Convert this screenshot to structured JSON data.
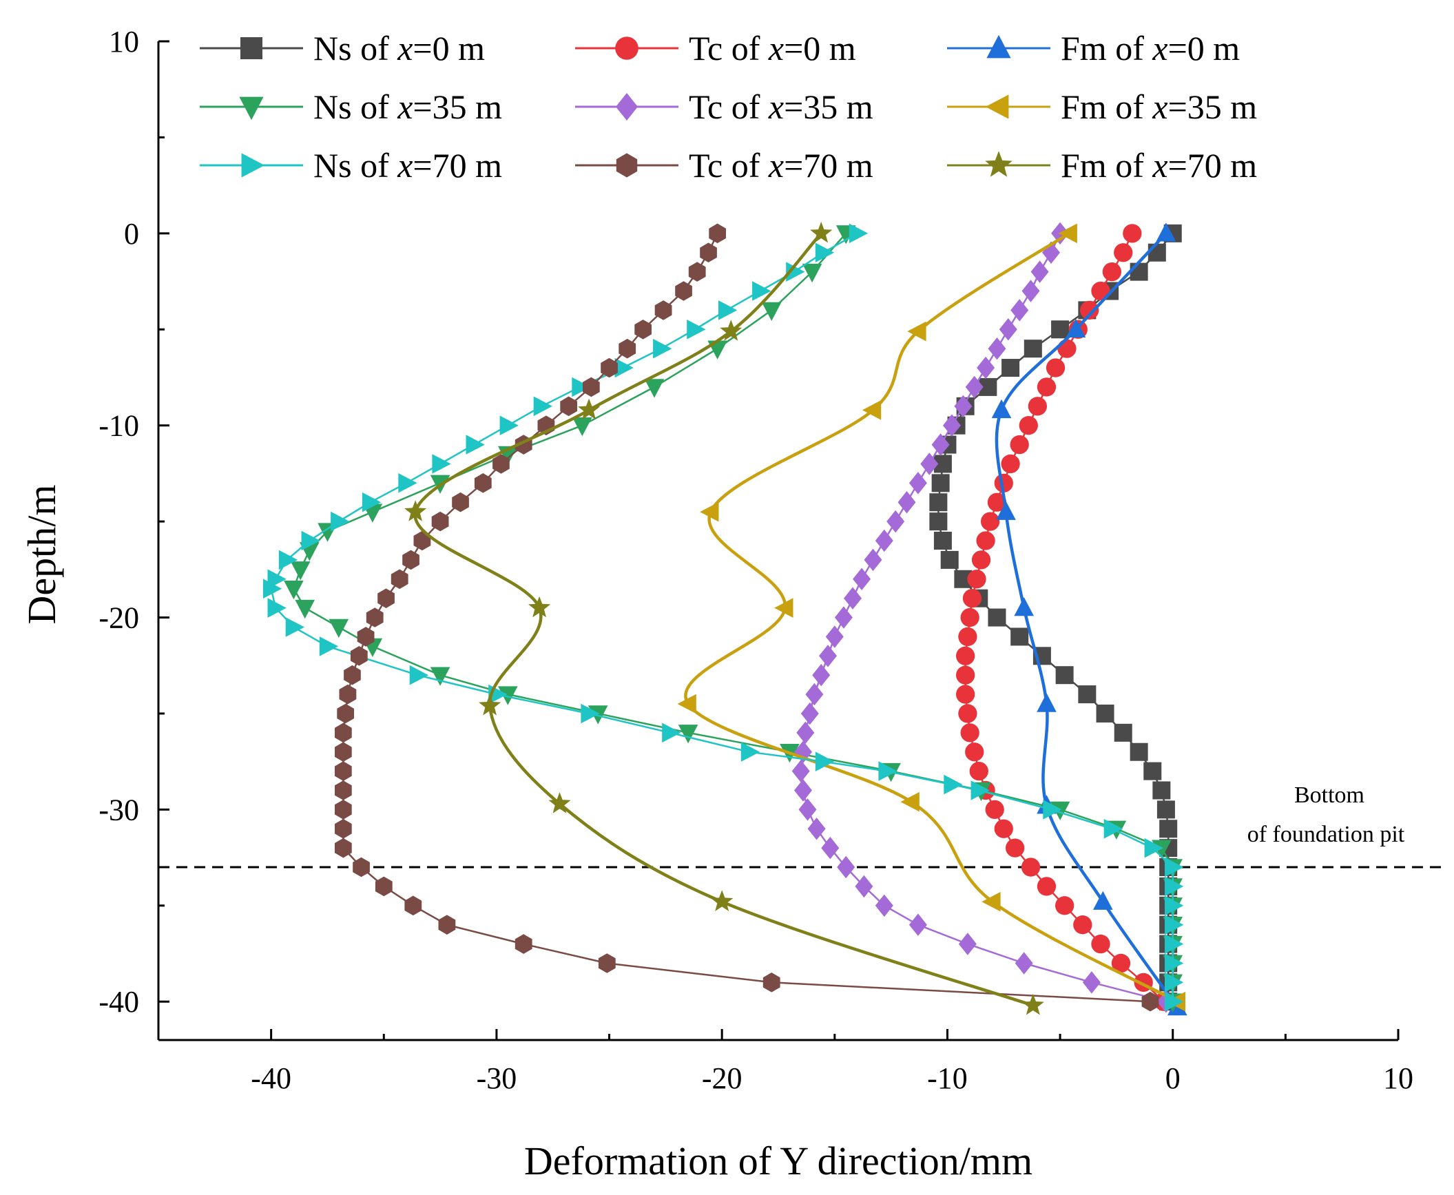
{
  "chart_data": {
    "type": "line",
    "title": "",
    "xlabel": "Deformation of Y direction/mm",
    "ylabel": "Depth/m",
    "xlim": [
      -45,
      10
    ],
    "ylim": [
      -42,
      10
    ],
    "x_ticks": [
      -40,
      -30,
      -20,
      -10,
      0,
      10
    ],
    "y_ticks": [
      -40,
      -30,
      -20,
      -10,
      0,
      10
    ],
    "reference_line": {
      "depth": -33,
      "style": "dashed",
      "label_line1": "Bottom",
      "label_line2": "of foundation pit"
    },
    "series": [
      {
        "name": "Ns of x=0 m",
        "prefix": "Ns of ",
        "var": "x",
        "suffix": "=0 m",
        "color": "#4a4a4a",
        "marker": "square",
        "smooth": false,
        "points": [
          [
            0,
            0
          ],
          [
            -0.7,
            -1
          ],
          [
            -1.5,
            -2
          ],
          [
            -2.8,
            -3
          ],
          [
            -3.8,
            -4
          ],
          [
            -5,
            -5
          ],
          [
            -6.2,
            -6
          ],
          [
            -7.2,
            -7
          ],
          [
            -8.2,
            -8
          ],
          [
            -9.2,
            -9
          ],
          [
            -9.6,
            -10
          ],
          [
            -10,
            -11
          ],
          [
            -10.2,
            -12
          ],
          [
            -10.3,
            -13
          ],
          [
            -10.4,
            -14
          ],
          [
            -10.4,
            -15
          ],
          [
            -10.2,
            -16
          ],
          [
            -9.9,
            -17
          ],
          [
            -9.3,
            -18
          ],
          [
            -8.6,
            -19
          ],
          [
            -7.8,
            -20
          ],
          [
            -6.8,
            -21
          ],
          [
            -5.8,
            -22
          ],
          [
            -4.8,
            -23
          ],
          [
            -3.8,
            -24
          ],
          [
            -3,
            -25
          ],
          [
            -2.2,
            -26
          ],
          [
            -1.5,
            -27
          ],
          [
            -0.9,
            -28
          ],
          [
            -0.5,
            -29
          ],
          [
            -0.3,
            -30
          ],
          [
            -0.2,
            -31
          ],
          [
            -0.2,
            -32
          ],
          [
            -0.2,
            -33
          ],
          [
            -0.2,
            -34
          ],
          [
            -0.2,
            -35
          ],
          [
            -0.2,
            -36
          ],
          [
            -0.2,
            -37
          ],
          [
            -0.2,
            -38
          ],
          [
            -0.2,
            -39
          ],
          [
            -0.2,
            -40
          ]
        ]
      },
      {
        "name": "Tc of x=0 m",
        "prefix": "Tc of ",
        "var": "x",
        "suffix": "=0 m",
        "color": "#e8333a",
        "marker": "circle",
        "smooth": false,
        "points": [
          [
            -1.8,
            0
          ],
          [
            -2.2,
            -1
          ],
          [
            -2.7,
            -2
          ],
          [
            -3.2,
            -3
          ],
          [
            -3.7,
            -4
          ],
          [
            -4.2,
            -5
          ],
          [
            -4.7,
            -6
          ],
          [
            -5.2,
            -7
          ],
          [
            -5.6,
            -8
          ],
          [
            -6,
            -9
          ],
          [
            -6.4,
            -10
          ],
          [
            -6.8,
            -11
          ],
          [
            -7.2,
            -12
          ],
          [
            -7.5,
            -13
          ],
          [
            -7.8,
            -14
          ],
          [
            -8.1,
            -15
          ],
          [
            -8.3,
            -16
          ],
          [
            -8.5,
            -17
          ],
          [
            -8.7,
            -18
          ],
          [
            -8.9,
            -19
          ],
          [
            -9,
            -20
          ],
          [
            -9.1,
            -21
          ],
          [
            -9.2,
            -22
          ],
          [
            -9.2,
            -23
          ],
          [
            -9.2,
            -24
          ],
          [
            -9.1,
            -25
          ],
          [
            -9,
            -26
          ],
          [
            -8.8,
            -27
          ],
          [
            -8.6,
            -28
          ],
          [
            -8.3,
            -29
          ],
          [
            -7.9,
            -30
          ],
          [
            -7.5,
            -31
          ],
          [
            -7,
            -32
          ],
          [
            -6.3,
            -33
          ],
          [
            -5.6,
            -34
          ],
          [
            -4.8,
            -35
          ],
          [
            -4,
            -36
          ],
          [
            -3.2,
            -37
          ],
          [
            -2.3,
            -38
          ],
          [
            -1.3,
            -39
          ],
          [
            -0.4,
            -40
          ]
        ]
      },
      {
        "name": "Fm of x=0 m",
        "prefix": "Fm of ",
        "var": "x",
        "suffix": "=0 m",
        "color": "#1f6fdb",
        "marker": "triangle-up",
        "smooth": true,
        "points": [
          [
            -0.3,
            0
          ],
          [
            -4.3,
            -5
          ],
          [
            -7.6,
            -9.2
          ],
          [
            -7.4,
            -14.5
          ],
          [
            -6.6,
            -19.5
          ],
          [
            -5.6,
            -24.5
          ],
          [
            -5.6,
            -29.8
          ],
          [
            -3.1,
            -34.8
          ],
          [
            0.2,
            -40.3
          ]
        ]
      },
      {
        "name": "Ns of x=35 m",
        "prefix": "Ns of ",
        "var": "x",
        "suffix": "=35 m",
        "color": "#2ca35c",
        "marker": "triangle-down",
        "smooth": false,
        "points": [
          [
            -14.5,
            0
          ],
          [
            -16,
            -2
          ],
          [
            -17.8,
            -4
          ],
          [
            -20.2,
            -6
          ],
          [
            -23,
            -8
          ],
          [
            -26.2,
            -10
          ],
          [
            -29.5,
            -11.5
          ],
          [
            -32.5,
            -13
          ],
          [
            -35.5,
            -14.5
          ],
          [
            -37.5,
            -15.5
          ],
          [
            -38.3,
            -16.5
          ],
          [
            -38.7,
            -17.5
          ],
          [
            -39,
            -18.5
          ],
          [
            -38.5,
            -19.5
          ],
          [
            -37,
            -20.5
          ],
          [
            -35.5,
            -21.5
          ],
          [
            -32.5,
            -23
          ],
          [
            -29.5,
            -24
          ],
          [
            -25.5,
            -25
          ],
          [
            -21.5,
            -26
          ],
          [
            -17,
            -27
          ],
          [
            -12.5,
            -28
          ],
          [
            -8.5,
            -29
          ],
          [
            -5,
            -30
          ],
          [
            -2.5,
            -31
          ],
          [
            -0.5,
            -32
          ],
          [
            0,
            -33
          ],
          [
            0,
            -34
          ],
          [
            0,
            -35
          ],
          [
            0,
            -36
          ],
          [
            0,
            -37
          ],
          [
            0,
            -38
          ],
          [
            0,
            -39
          ],
          [
            0,
            -40
          ]
        ]
      },
      {
        "name": "Tc of x=35 m",
        "prefix": "Tc of ",
        "var": "x",
        "suffix": "=35 m",
        "color": "#a46ad8",
        "marker": "diamond",
        "smooth": false,
        "points": [
          [
            -5,
            0
          ],
          [
            -5.4,
            -1
          ],
          [
            -5.9,
            -2
          ],
          [
            -6.3,
            -3
          ],
          [
            -6.8,
            -4
          ],
          [
            -7.3,
            -5
          ],
          [
            -7.8,
            -6
          ],
          [
            -8.3,
            -7
          ],
          [
            -8.8,
            -8
          ],
          [
            -9.3,
            -9
          ],
          [
            -9.8,
            -10
          ],
          [
            -10.3,
            -11
          ],
          [
            -10.8,
            -12
          ],
          [
            -11.3,
            -13
          ],
          [
            -11.8,
            -14
          ],
          [
            -12.3,
            -15
          ],
          [
            -12.8,
            -16
          ],
          [
            -13.3,
            -17
          ],
          [
            -13.8,
            -18
          ],
          [
            -14.2,
            -19
          ],
          [
            -14.6,
            -20
          ],
          [
            -15,
            -21
          ],
          [
            -15.3,
            -22
          ],
          [
            -15.6,
            -23
          ],
          [
            -15.9,
            -24
          ],
          [
            -16.1,
            -25
          ],
          [
            -16.3,
            -26
          ],
          [
            -16.4,
            -27
          ],
          [
            -16.5,
            -28
          ],
          [
            -16.4,
            -29
          ],
          [
            -16.2,
            -30
          ],
          [
            -15.8,
            -31
          ],
          [
            -15.2,
            -32
          ],
          [
            -14.5,
            -33
          ],
          [
            -13.7,
            -34
          ],
          [
            -12.8,
            -35
          ],
          [
            -11.3,
            -36
          ],
          [
            -9.1,
            -37
          ],
          [
            -6.6,
            -38
          ],
          [
            -3.6,
            -39
          ],
          [
            -0.3,
            -40
          ]
        ]
      },
      {
        "name": "Fm of x=35 m",
        "prefix": "Fm of ",
        "var": "x",
        "suffix": "=35 m",
        "color": "#c9a00d",
        "marker": "triangle-left",
        "smooth": true,
        "points": [
          [
            -4.6,
            0
          ],
          [
            -11.3,
            -5.1
          ],
          [
            -13.3,
            -9.2
          ],
          [
            -20.5,
            -14.5
          ],
          [
            -17.2,
            -19.5
          ],
          [
            -21.5,
            -24.5
          ],
          [
            -11.6,
            -29.6
          ],
          [
            -8,
            -34.8
          ],
          [
            0.2,
            -40
          ]
        ]
      },
      {
        "name": "Ns of x=70 m",
        "prefix": "Ns of ",
        "var": "x",
        "suffix": "=70 m",
        "color": "#1fc4c4",
        "marker": "triangle-right",
        "smooth": false,
        "points": [
          [
            -14,
            0
          ],
          [
            -15.5,
            -1
          ],
          [
            -16.8,
            -2
          ],
          [
            -18.3,
            -3
          ],
          [
            -19.8,
            -4
          ],
          [
            -21.2,
            -5
          ],
          [
            -22.7,
            -6
          ],
          [
            -24.4,
            -7
          ],
          [
            -26.3,
            -8
          ],
          [
            -28,
            -9
          ],
          [
            -29.5,
            -10
          ],
          [
            -31,
            -11
          ],
          [
            -32.5,
            -12
          ],
          [
            -34,
            -13
          ],
          [
            -35.6,
            -14
          ],
          [
            -37,
            -15
          ],
          [
            -38.3,
            -16
          ],
          [
            -39.3,
            -17
          ],
          [
            -39.8,
            -18
          ],
          [
            -40,
            -18.5
          ],
          [
            -39.8,
            -19.5
          ],
          [
            -39,
            -20.5
          ],
          [
            -37.5,
            -21.5
          ],
          [
            -33.5,
            -23
          ],
          [
            -30,
            -24
          ],
          [
            -25.9,
            -25
          ],
          [
            -22.3,
            -26
          ],
          [
            -18.8,
            -27
          ],
          [
            -15.5,
            -27.5
          ],
          [
            -12.7,
            -28
          ],
          [
            -9.8,
            -28.7
          ],
          [
            -8.6,
            -29
          ],
          [
            -5.4,
            -30
          ],
          [
            -2.7,
            -31
          ],
          [
            -0.9,
            -32
          ],
          [
            0,
            -33
          ],
          [
            0,
            -34
          ],
          [
            0,
            -35
          ],
          [
            0,
            -36
          ],
          [
            0,
            -37
          ],
          [
            0,
            -38
          ],
          [
            0,
            -39
          ],
          [
            0,
            -40
          ]
        ]
      },
      {
        "name": "Tc of x=70 m",
        "prefix": "Tc of ",
        "var": "x",
        "suffix": "=70 m",
        "color": "#7a4a45",
        "marker": "hexagon",
        "smooth": false,
        "points": [
          [
            -20.2,
            0
          ],
          [
            -20.6,
            -1
          ],
          [
            -21.1,
            -2
          ],
          [
            -21.7,
            -3
          ],
          [
            -22.6,
            -4
          ],
          [
            -23.5,
            -5
          ],
          [
            -24.2,
            -6
          ],
          [
            -25,
            -7
          ],
          [
            -25.8,
            -8
          ],
          [
            -26.8,
            -9
          ],
          [
            -27.8,
            -10
          ],
          [
            -28.8,
            -11
          ],
          [
            -29.8,
            -12
          ],
          [
            -30.6,
            -13
          ],
          [
            -31.6,
            -14
          ],
          [
            -32.5,
            -15
          ],
          [
            -33.3,
            -16
          ],
          [
            -33.8,
            -17
          ],
          [
            -34.3,
            -18
          ],
          [
            -34.9,
            -19
          ],
          [
            -35.4,
            -20
          ],
          [
            -35.8,
            -21
          ],
          [
            -36.1,
            -22
          ],
          [
            -36.4,
            -23
          ],
          [
            -36.6,
            -24
          ],
          [
            -36.7,
            -25
          ],
          [
            -36.8,
            -26
          ],
          [
            -36.8,
            -27
          ],
          [
            -36.8,
            -28
          ],
          [
            -36.8,
            -29
          ],
          [
            -36.8,
            -30
          ],
          [
            -36.8,
            -31
          ],
          [
            -36.8,
            -32
          ],
          [
            -36,
            -33
          ],
          [
            -35,
            -34
          ],
          [
            -33.7,
            -35
          ],
          [
            -32.2,
            -36
          ],
          [
            -28.8,
            -37
          ],
          [
            -25.1,
            -38
          ],
          [
            -17.8,
            -39
          ],
          [
            -1,
            -40
          ]
        ]
      },
      {
        "name": "Fm of x=70 m",
        "prefix": "Fm of ",
        "var": "x",
        "suffix": "=70 m",
        "color": "#7f8018",
        "marker": "star",
        "smooth": true,
        "points": [
          [
            -15.6,
            0
          ],
          [
            -19.6,
            -5.1
          ],
          [
            -25.9,
            -9.2
          ],
          [
            -33.6,
            -14.5
          ],
          [
            -28.1,
            -19.5
          ],
          [
            -30.3,
            -24.6
          ],
          [
            -27.2,
            -29.7
          ],
          [
            -20,
            -34.8
          ],
          [
            -6.2,
            -40.2
          ]
        ]
      }
    ]
  }
}
